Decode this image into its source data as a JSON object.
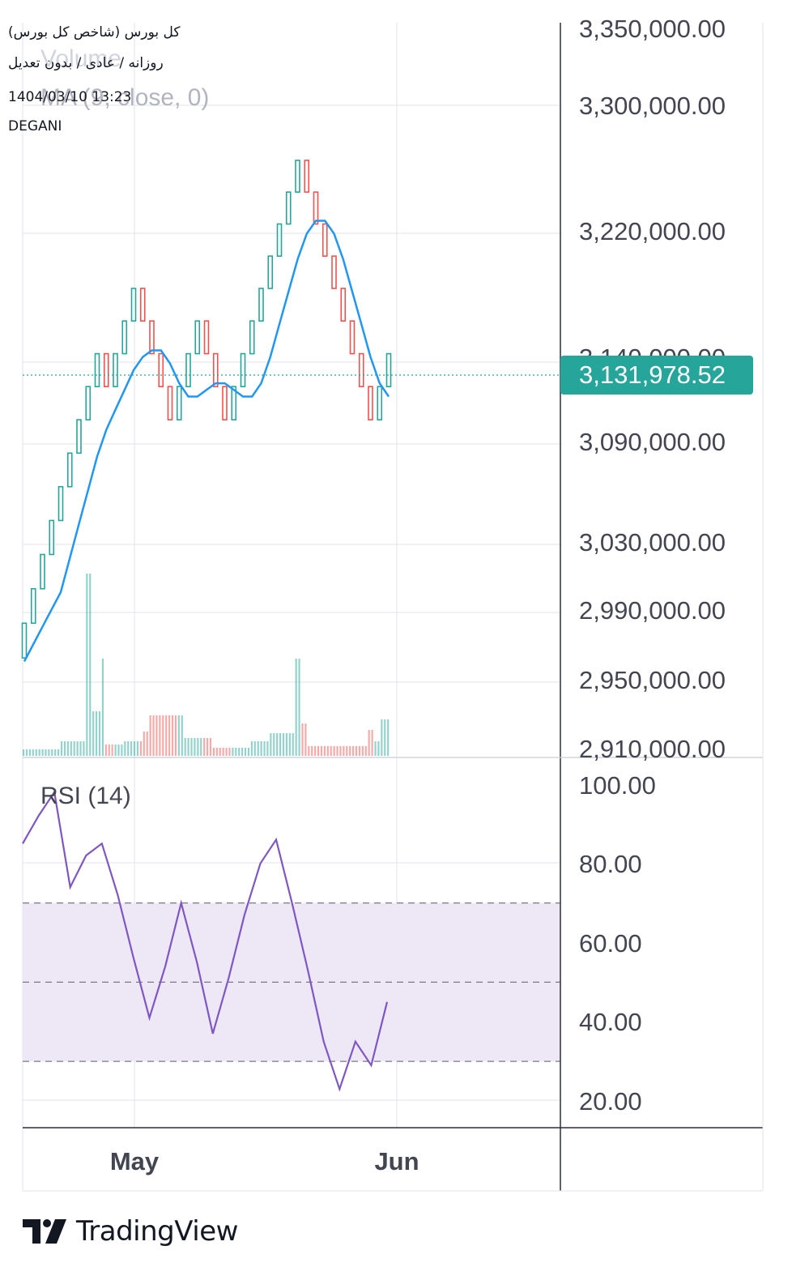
{
  "header": {
    "title": "کل بورس (شاخص کل بورس)",
    "subtitle": "روزانه / عادی / بدون تعدیل",
    "datetime": "1404/03/10 13:23",
    "author": "DEGANI"
  },
  "ghost_labels": {
    "volume": "Volume",
    "ma": "MA (9, close, 0)"
  },
  "price_labels": [
    "3,350,000.00",
    "3,300,000.00",
    "3,220,000.00",
    "3,140,000.00",
    "3,090,000.00",
    "3,030,000.00",
    "2,990,000.00",
    "2,950,000.00",
    "2,910,000.00"
  ],
  "last_price": "3,131,978.52",
  "rsi_title": "RSI (14)",
  "rsi_labels": [
    "100.00",
    "80.00",
    "60.00",
    "40.00",
    "20.00"
  ],
  "x_labels": [
    "May",
    "Jun"
  ],
  "brand": "TradingView",
  "colors": {
    "up": "#26a69a",
    "down": "#ef5350",
    "ma": "#2196f3",
    "rsi": "#7e57c2",
    "rsi_band": "#ede7f6",
    "price_tag": "#26a69a",
    "grid": "#e0e3eb"
  },
  "chart_data": {
    "type": "renko",
    "price_axis_scale": "log",
    "rsi_axis_range": [
      20,
      100
    ],
    "rsi_bands": [
      30,
      50,
      70
    ],
    "brick_tops": [
      2985000,
      3005000,
      3025000,
      3045000,
      3065000,
      3085000,
      3105000,
      3125000,
      3145000,
      3125000,
      3145000,
      3165000,
      3185000,
      3165000,
      3145000,
      3125000,
      3105000,
      3125000,
      3145000,
      3165000,
      3145000,
      3125000,
      3105000,
      3125000,
      3145000,
      3165000,
      3185000,
      3205000,
      3225000,
      3245000,
      3265000,
      3245000,
      3225000,
      3205000,
      3185000,
      3165000,
      3145000,
      3125000,
      3105000,
      3125000,
      3145000
    ],
    "last_price": 3131978.52,
    "rsi_values": [
      85,
      92,
      98,
      74,
      82,
      85,
      72,
      56,
      41,
      54,
      70,
      55,
      37,
      51,
      67,
      80,
      86,
      70,
      53,
      35,
      23,
      35,
      29,
      45
    ]
  }
}
